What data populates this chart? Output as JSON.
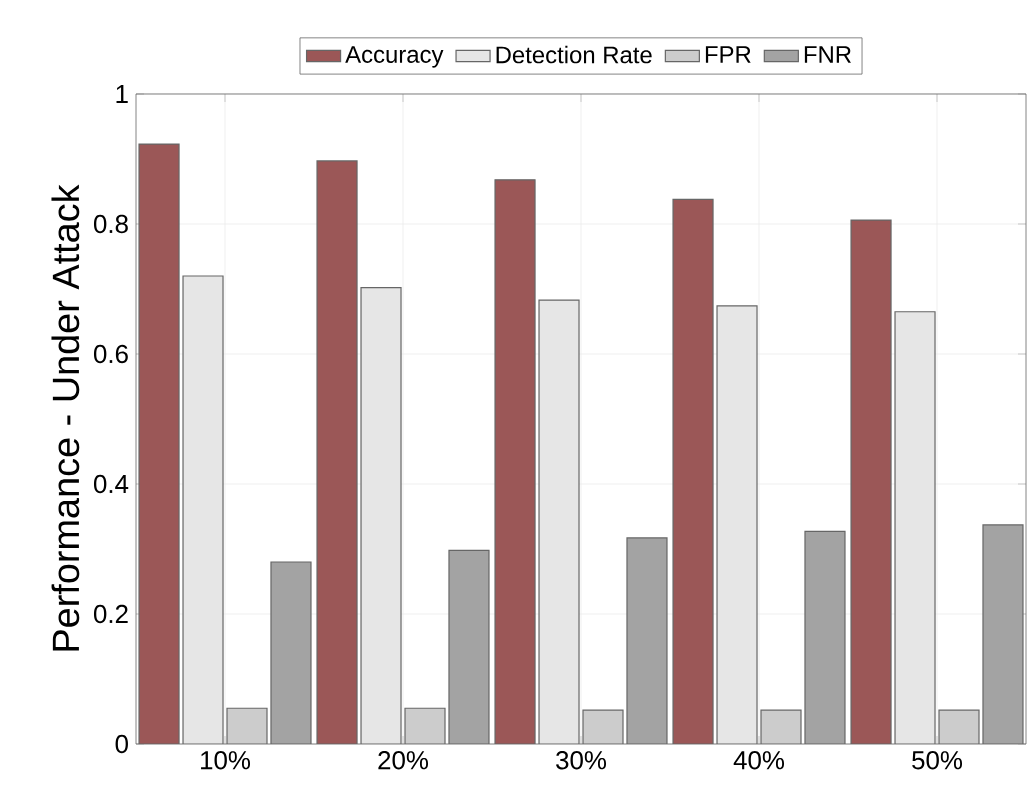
{
  "chart_data": {
    "type": "bar",
    "ylabel": "Performance - Under Attack",
    "categories": [
      "10%",
      "20%",
      "30%",
      "40%",
      "50%"
    ],
    "series": [
      {
        "name": "Accuracy",
        "color": "#9b5757",
        "values": [
          0.923,
          0.897,
          0.868,
          0.838,
          0.806
        ]
      },
      {
        "name": "Detection Rate",
        "color": "#e6e6e6",
        "values": [
          0.72,
          0.702,
          0.683,
          0.674,
          0.665
        ]
      },
      {
        "name": "FPR",
        "color": "#cccccc",
        "values": [
          0.055,
          0.055,
          0.052,
          0.052,
          0.052
        ]
      },
      {
        "name": "FNR",
        "color": "#a3a3a3",
        "values": [
          0.28,
          0.298,
          0.317,
          0.327,
          0.337
        ]
      }
    ],
    "ylim": [
      0,
      1
    ],
    "yticks": [
      0,
      0.2,
      0.4,
      0.6,
      0.8,
      1
    ],
    "grid": true,
    "legend": "top"
  }
}
